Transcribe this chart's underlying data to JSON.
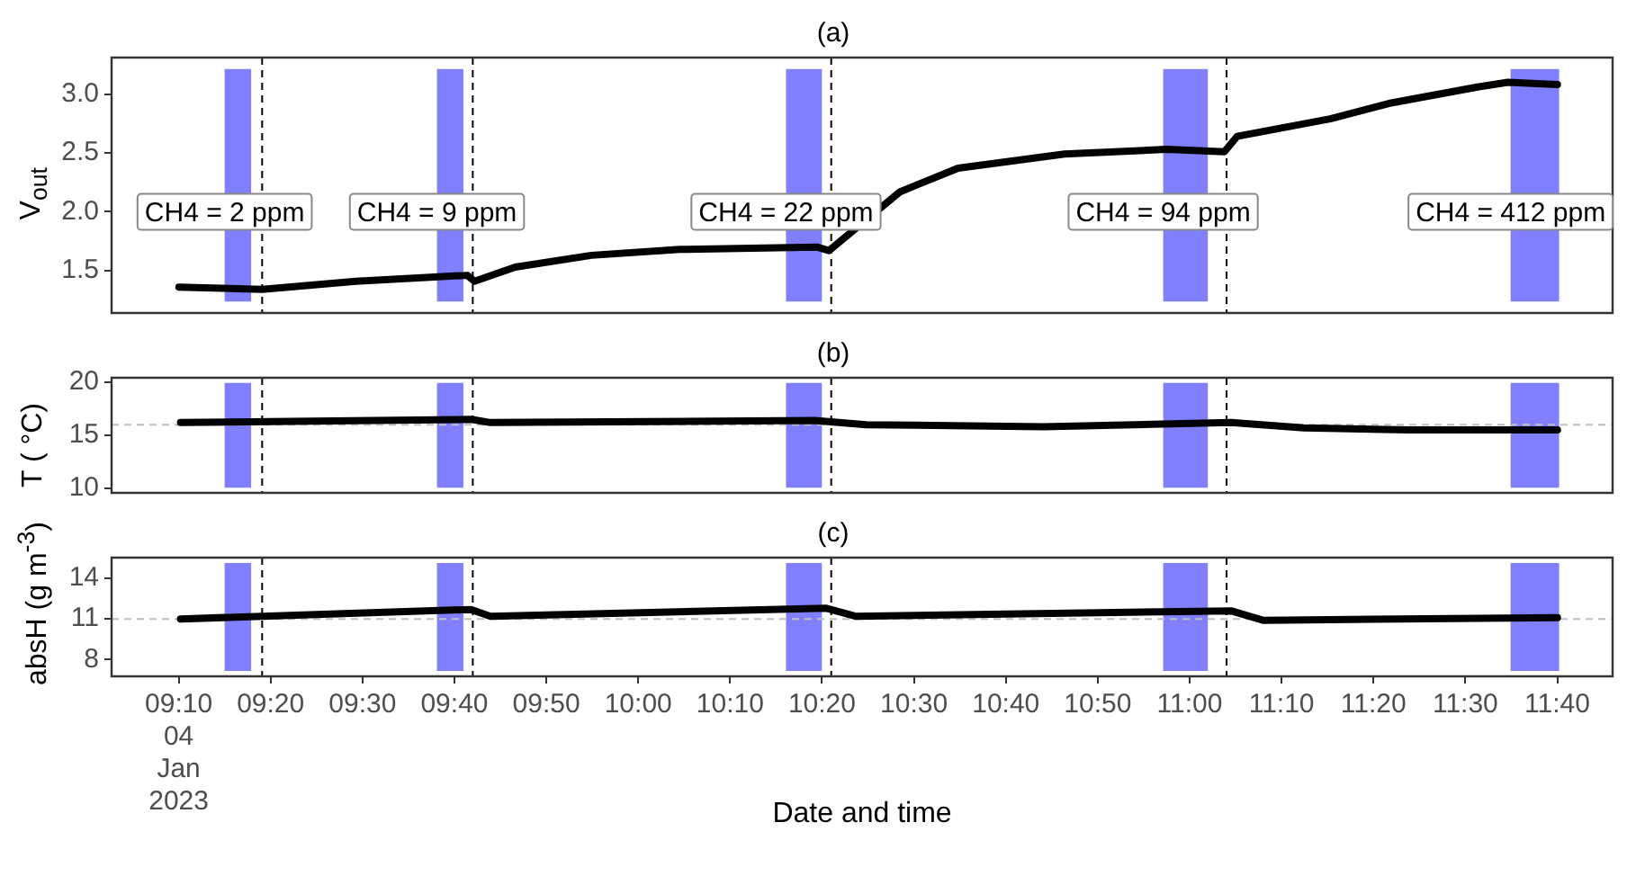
{
  "chart_data": [
    {
      "type": "line",
      "title": "(a)",
      "ylabel": "V$_{out}$",
      "marker": "none",
      "tick_labels": "y",
      "xlim": [
        9.045,
        11.767
      ],
      "ylim": [
        1.14,
        3.31
      ],
      "yticks": [
        1.5,
        {
          "value": 2,
          "label": "2.0"
        },
        2.5,
        {
          "value": 3,
          "label": "3.0"
        }
      ],
      "x": [
        9.167,
        9.318,
        9.488,
        9.69,
        9.703,
        9.777,
        9.915,
        10.076,
        10.324,
        10.346,
        10.475,
        10.58,
        10.773,
        10.957,
        11.063,
        11.086,
        11.255,
        11.361,
        11.522,
        11.577,
        11.667
      ],
      "series": [
        {
          "color": "#000000",
          "values": [
            1.36,
            1.34,
            1.41,
            1.46,
            1.41,
            1.53,
            1.63,
            1.68,
            1.7,
            1.67,
            2.17,
            2.37,
            2.49,
            2.53,
            2.51,
            2.64,
            2.79,
            2.92,
            3.06,
            3.1,
            3.08
          ]
        }
      ],
      "bands": [
        {
          "axis": "x",
          "from": 9.25,
          "to": 9.298,
          "color": "#8080ff"
        },
        {
          "axis": "x",
          "from": 9.635,
          "to": 9.683,
          "color": "#8080ff"
        },
        {
          "axis": "x",
          "from": 10.268,
          "to": 10.333,
          "color": "#8080ff"
        },
        {
          "axis": "x",
          "from": 10.952,
          "to": 11.033,
          "color": "#8080ff"
        },
        {
          "axis": "x",
          "from": 11.582,
          "to": 11.67,
          "color": "#8080ff"
        }
      ],
      "ref_lines": [
        {
          "axis": "x",
          "value": 9.318,
          "color": "#000000",
          "line_style": "dashed"
        },
        {
          "axis": "x",
          "value": 9.7,
          "color": "#000000",
          "line_style": "dashed"
        },
        {
          "axis": "x",
          "value": 10.35,
          "color": "#000000",
          "line_style": "dashed"
        },
        {
          "axis": "x",
          "value": 11.067,
          "color": "#000000",
          "line_style": "dashed"
        }
      ],
      "annotations": [
        {
          "text": "CH4 = 2 ppm",
          "x": 9.25,
          "y": 2.0
        },
        {
          "text": "CH4 = 9 ppm",
          "x": 9.635,
          "y": 2.0
        },
        {
          "text": "CH4 = 22 ppm",
          "x": 10.268,
          "y": 2.0
        },
        {
          "text": "CH4 = 94 ppm",
          "x": 10.952,
          "y": 2.0
        },
        {
          "text": "CH4 = 412 ppm",
          "x": 11.582,
          "y": 2.0
        }
      ]
    },
    {
      "type": "line",
      "title": "(b)",
      "ylabel": "T ( °C)",
      "marker": "none",
      "tick_labels": "y",
      "xlim": [
        9.045,
        11.767
      ],
      "ylim": [
        9.58,
        20.42
      ],
      "yticks": [
        10,
        15,
        20
      ],
      "x": [
        9.17,
        9.697,
        9.732,
        10.32,
        10.413,
        10.735,
        11.075,
        11.207,
        11.397,
        11.667
      ],
      "series": [
        {
          "color": "#000000",
          "values": [
            16.2,
            16.5,
            16.2,
            16.4,
            16.0,
            15.8,
            16.2,
            15.7,
            15.5,
            15.5
          ]
        }
      ],
      "bands": [
        {
          "axis": "x",
          "from": 9.25,
          "to": 9.298,
          "color": "#8080ff"
        },
        {
          "axis": "x",
          "from": 9.635,
          "to": 9.683,
          "color": "#8080ff"
        },
        {
          "axis": "x",
          "from": 10.268,
          "to": 10.333,
          "color": "#8080ff"
        },
        {
          "axis": "x",
          "from": 10.952,
          "to": 11.033,
          "color": "#8080ff"
        },
        {
          "axis": "x",
          "from": 11.582,
          "to": 11.67,
          "color": "#8080ff"
        }
      ],
      "ref_lines": [
        {
          "axis": "x",
          "value": 9.318,
          "color": "#000000",
          "line_style": "dashed"
        },
        {
          "axis": "x",
          "value": 9.7,
          "color": "#000000",
          "line_style": "dashed"
        },
        {
          "axis": "x",
          "value": 10.35,
          "color": "#000000",
          "line_style": "dashed"
        },
        {
          "axis": "x",
          "value": 11.067,
          "color": "#000000",
          "line_style": "dashed"
        },
        {
          "axis": "y",
          "value": 16,
          "color": "#bebebe",
          "line_style": "dashed"
        }
      ]
    },
    {
      "type": "line",
      "title": "(c)",
      "ylabel": "absH (g m$^{-3}$)",
      "xlabel": "Date and time",
      "marker": "none",
      "xlim": [
        9.045,
        11.767
      ],
      "ylim": [
        6.75,
        15.54
      ],
      "yticks": [
        8,
        11,
        14
      ],
      "xticks": [
        {
          "value": 9.1667,
          "label": "09:10\n04\nJan\n2023"
        },
        {
          "value": 9.3333,
          "label": "09:20"
        },
        {
          "value": 9.5,
          "label": "09:30"
        },
        {
          "value": 9.6667,
          "label": "09:40"
        },
        {
          "value": 9.8333,
          "label": "09:50"
        },
        {
          "value": 10,
          "label": "10:00"
        },
        {
          "value": 10.1667,
          "label": "10:10"
        },
        {
          "value": 10.3333,
          "label": "10:20"
        },
        {
          "value": 10.5,
          "label": "10:30"
        },
        {
          "value": 10.6667,
          "label": "10:40"
        },
        {
          "value": 10.8333,
          "label": "10:50"
        },
        {
          "value": 11,
          "label": "11:00"
        },
        {
          "value": 11.1667,
          "label": "11:10"
        },
        {
          "value": 11.3333,
          "label": "11:20"
        },
        {
          "value": 11.5,
          "label": "11:30"
        },
        {
          "value": 11.6667,
          "label": "11:40"
        }
      ],
      "x": [
        9.17,
        9.697,
        9.732,
        10.34,
        10.394,
        11.075,
        11.133,
        11.667
      ],
      "series": [
        {
          "color": "#000000",
          "values": [
            11.0,
            11.7,
            11.2,
            11.8,
            11.2,
            11.6,
            10.9,
            11.1
          ]
        }
      ],
      "bands": [
        {
          "axis": "x",
          "from": 9.25,
          "to": 9.298,
          "color": "#8080ff"
        },
        {
          "axis": "x",
          "from": 9.635,
          "to": 9.683,
          "color": "#8080ff"
        },
        {
          "axis": "x",
          "from": 10.268,
          "to": 10.333,
          "color": "#8080ff"
        },
        {
          "axis": "x",
          "from": 10.952,
          "to": 11.033,
          "color": "#8080ff"
        },
        {
          "axis": "x",
          "from": 11.582,
          "to": 11.67,
          "color": "#8080ff"
        }
      ],
      "ref_lines": [
        {
          "axis": "x",
          "value": 9.318,
          "color": "#000000",
          "line_style": "dashed"
        },
        {
          "axis": "x",
          "value": 9.7,
          "color": "#000000",
          "line_style": "dashed"
        },
        {
          "axis": "x",
          "value": 10.35,
          "color": "#000000",
          "line_style": "dashed"
        },
        {
          "axis": "x",
          "value": 11.067,
          "color": "#000000",
          "line_style": "dashed"
        },
        {
          "axis": "y",
          "value": 11,
          "color": "#bebebe",
          "line_style": "dashed"
        }
      ]
    }
  ]
}
